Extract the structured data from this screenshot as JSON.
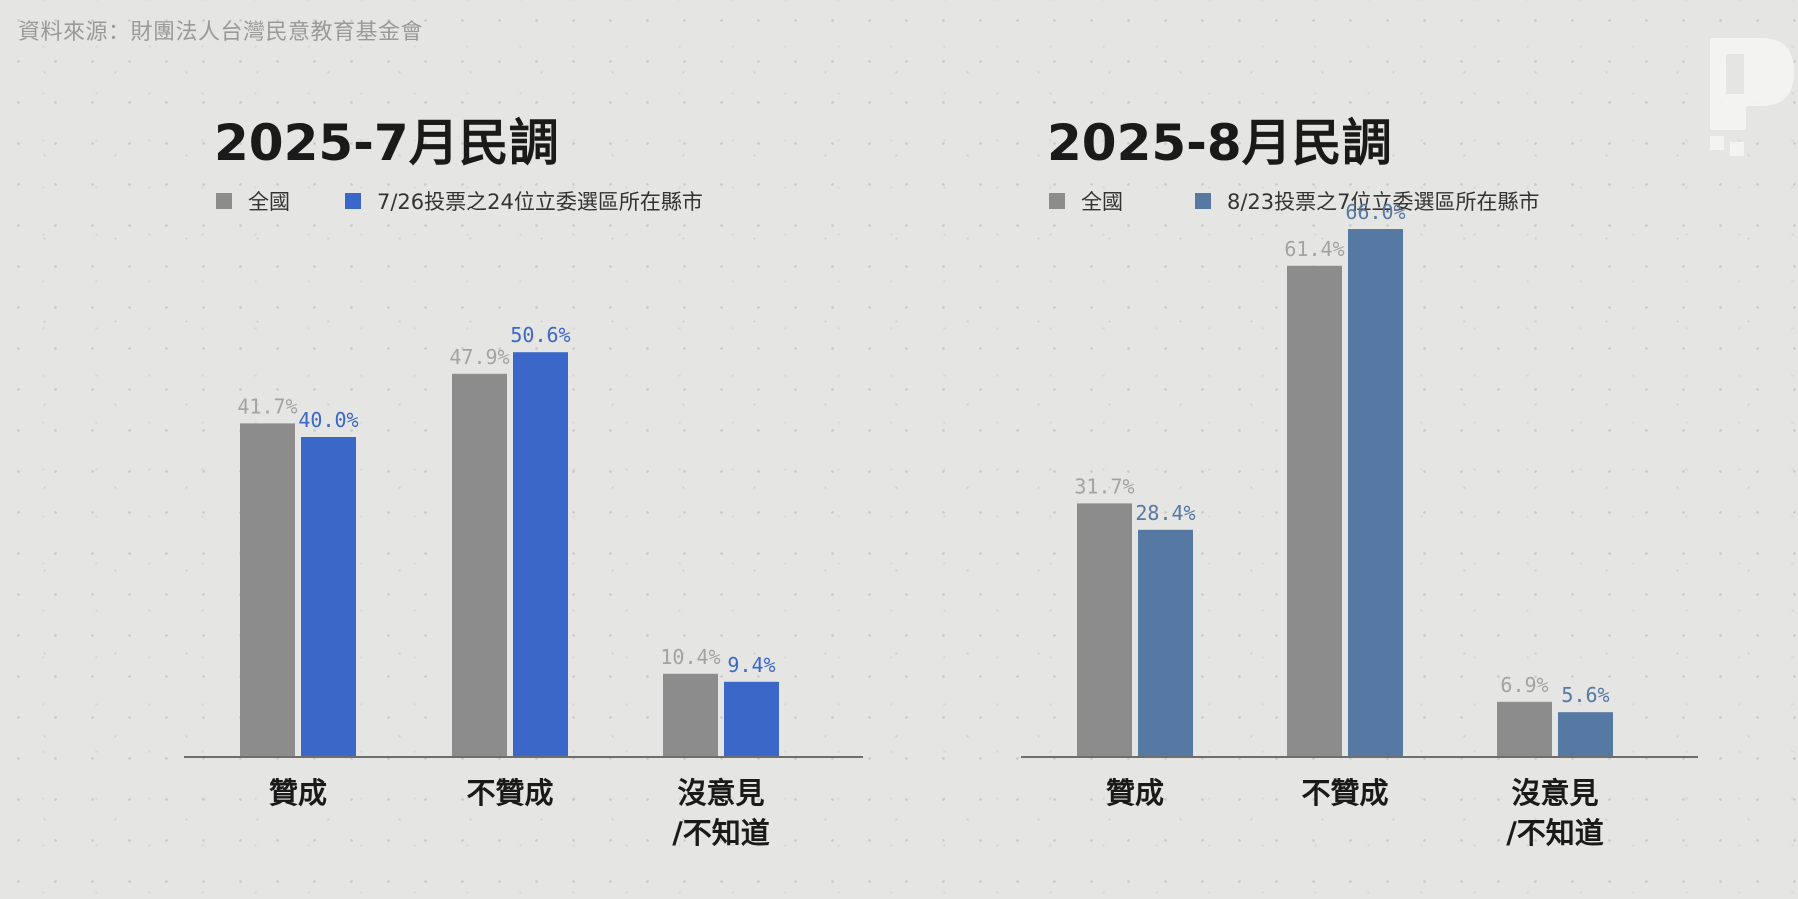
{
  "source_text": "資料來源：財團法人台灣民意教育基金會",
  "chart_data": [
    {
      "type": "bar",
      "title": "2025-7月民調",
      "categories": [
        [
          "贊成"
        ],
        [
          "不贊成"
        ],
        [
          "沒意見",
          "/不知道"
        ]
      ],
      "ylim": [
        0,
        70
      ],
      "legend_position": "top-left",
      "grid": false,
      "series": [
        {
          "name": "全國",
          "color": "#8c8c8c",
          "label_color": "#a3a3a3",
          "values": [
            41.7,
            47.9,
            10.4
          ],
          "labels": [
            "41.7%",
            "47.9%",
            "10.4%"
          ]
        },
        {
          "name": "7/26投票之24位立委選區所在縣市",
          "color": "#3b68c8",
          "label_color": "#3b68c8",
          "values": [
            40.0,
            50.6,
            9.4
          ],
          "labels": [
            "40.0%",
            "50.6%",
            "9.4%"
          ]
        }
      ]
    },
    {
      "type": "bar",
      "title": "2025-8月民調",
      "categories": [
        [
          "贊成"
        ],
        [
          "不贊成"
        ],
        [
          "沒意見",
          "/不知道"
        ]
      ],
      "ylim": [
        0,
        70
      ],
      "legend_position": "top-left",
      "grid": false,
      "series": [
        {
          "name": "全國",
          "color": "#8c8c8c",
          "label_color": "#a3a3a3",
          "values": [
            31.7,
            61.4,
            6.9
          ],
          "labels": [
            "31.7%",
            "61.4%",
            "6.9%"
          ]
        },
        {
          "name": "8/23投票之7位立委選區所在縣市",
          "color": "#5679a3",
          "label_color": "#5679a3",
          "values": [
            28.4,
            66.0,
            5.6
          ],
          "labels": [
            "28.4%",
            "66.0%",
            "5.6%"
          ]
        }
      ]
    }
  ]
}
